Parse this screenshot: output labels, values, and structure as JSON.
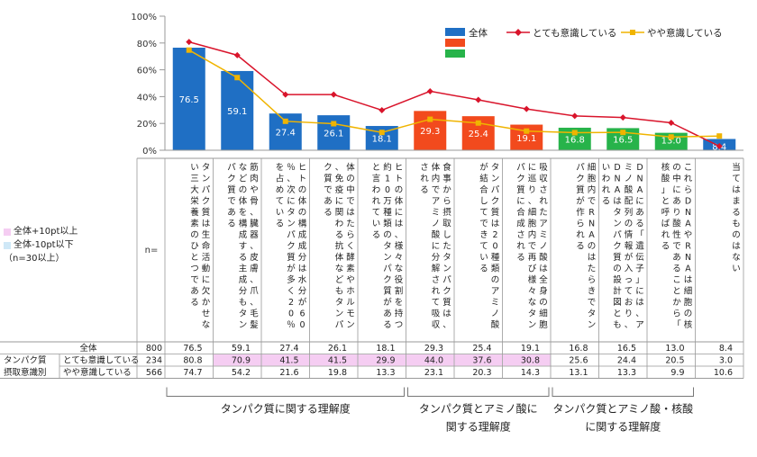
{
  "chart_data": {
    "type": "bar",
    "ylim": [
      0,
      100
    ],
    "yticks": [
      "0%",
      "20%",
      "40%",
      "60%",
      "80%",
      "100%"
    ],
    "n_label": "n=",
    "categories": [
      "タンパク質は生命活動に欠かせない三大栄養素のひとつである",
      "筋肉や骨、臓器、皮膚、爪、毛髪などの体を構成する主成分もタンパク質である",
      "ヒトの体の構成成分は水分が60％、次にタンパク質が多く20％を占めている",
      "体の中ではたらく酵素やホルモン、免疫に関わる抗体などもタンパク質である",
      "ヒトの体には、様々な役割を持つ約10万種類のタンパク質があると言われている",
      "食事から摂取したタンパク質は、体内でアミノ酸に分解されて吸収される",
      "タンパク質は20種類のアミノ酸が結合してできている",
      "吸収されたアミノ酸は全身の細胞に巡り、細胞内で再び様々なタンパク質に合成される",
      "細胞内でRNAのはたらきでタンパク質が作られる",
      "DNAにある「遺伝子」には、アミノ酸配列の情報が入っており、DNAはタンパク質の設計図ともいわれる",
      "これらDNAやRNAは細胞の核の中にあり酸性であることから「核酸」と呼ばれる",
      "当てはまるものはない"
    ],
    "bar_colors": [
      "#1f6fc4",
      "#1f6fc4",
      "#1f6fc4",
      "#1f6fc4",
      "#1f6fc4",
      "#f24a1d",
      "#f24a1d",
      "#f24a1d",
      "#27b34a",
      "#27b34a",
      "#27b34a",
      "#1f6fc4"
    ],
    "series": [
      {
        "name": "全体",
        "n": "800",
        "color": "#1f6fc4",
        "values": [
          76.5,
          59.1,
          27.4,
          26.1,
          18.1,
          29.3,
          25.4,
          19.1,
          16.8,
          16.5,
          13.0,
          8.4
        ],
        "labels": [
          "76.5",
          "59.1",
          "27.4",
          "26.1",
          "18.1",
          "29.3",
          "25.4",
          "19.1",
          "16.8",
          "16.5",
          "13.0",
          "8.4"
        ]
      },
      {
        "name": "とても意識している",
        "n": "234",
        "color": "#d9142b",
        "values": [
          80.8,
          70.9,
          41.5,
          41.5,
          29.9,
          44.0,
          37.6,
          30.8,
          25.6,
          24.4,
          20.5,
          3.0
        ],
        "labels": [
          "80.8",
          "70.9",
          "41.5",
          "41.5",
          "29.9",
          "44.0",
          "37.6",
          "30.8",
          "25.6",
          "24.4",
          "20.5",
          "3.0"
        ]
      },
      {
        "name": "やや意識している",
        "n": "566",
        "color": "#f0b400",
        "values": [
          74.7,
          54.2,
          21.6,
          19.8,
          13.3,
          23.1,
          20.3,
          14.3,
          13.1,
          13.3,
          9.9,
          10.6
        ],
        "labels": [
          "74.7",
          "54.2",
          "21.6",
          "19.8",
          "13.3",
          "23.1",
          "20.3",
          "14.3",
          "13.1",
          "13.3",
          "9.9",
          "10.6"
        ]
      }
    ],
    "row_group_label": [
      "タンパク質",
      "摂取意識別"
    ],
    "highlight_up": [
      [],
      [
        1,
        2,
        3,
        4,
        5,
        6,
        7
      ],
      []
    ],
    "highlight_down": [
      [],
      [],
      []
    ],
    "highlight_colors": {
      "up": "#f5cdf2",
      "down": "#cfe8f7"
    },
    "legend_left": [
      {
        "text": "全体+10pt以上",
        "color": "#f5cdf2"
      },
      {
        "text": "全体-10pt以下",
        "color": "#cfe8f7"
      },
      {
        "text": "（n=30以上）",
        "color": ""
      }
    ],
    "groups": [
      {
        "label_lines": [
          "タンパク質に関する理解度"
        ],
        "start": 0,
        "end": 4
      },
      {
        "label_lines": [
          "タンパク質とアミノ酸に",
          "関する理解度"
        ],
        "start": 5,
        "end": 7
      },
      {
        "label_lines": [
          "タンパク質とアミノ酸・核酸",
          "に関する理解度"
        ],
        "start": 8,
        "end": 10
      }
    ],
    "legend_swatches": [
      "#1f6fc4",
      "#f24a1d",
      "#27b34a"
    ]
  }
}
